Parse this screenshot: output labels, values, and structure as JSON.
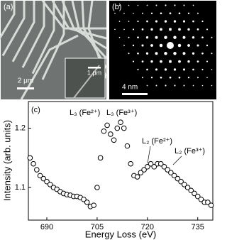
{
  "panels": {
    "a": {
      "label": "(a)",
      "scale_bar": "2 μm",
      "inset_scale_bar": "1 μm"
    },
    "b": {
      "label": "(b)",
      "scale_bar": "4 nm"
    }
  },
  "chart_data": {
    "type": "scatter",
    "label": "(c)",
    "x_label": "Energy Loss (eV)",
    "y_label": "Intensity (arb. units)",
    "annotations": [
      "L₃ (Fe²⁺)",
      "L₃ (Fe³⁺)",
      "L₂ (Fe²⁺)",
      "L₂ (Fe³⁺)"
    ],
    "x": [
      685,
      686,
      687,
      688,
      689,
      690,
      691,
      692,
      693,
      694,
      695,
      696,
      697,
      698,
      699,
      700,
      701,
      702,
      703,
      704,
      705,
      706,
      707,
      708,
      709,
      710,
      711,
      712,
      713,
      714,
      715,
      716,
      717,
      718,
      719,
      720,
      721,
      722,
      723,
      724,
      725,
      726,
      727,
      728,
      729,
      730,
      731,
      732,
      733,
      734,
      735,
      736,
      737,
      738,
      739
    ],
    "values": [
      1.15,
      1.14,
      1.13,
      1.12,
      1.115,
      1.11,
      1.105,
      1.1,
      1.097,
      1.093,
      1.09,
      1.088,
      1.087,
      1.085,
      1.085,
      1.083,
      1.08,
      1.075,
      1.068,
      1.07,
      1.1,
      1.15,
      1.195,
      1.205,
      1.19,
      1.18,
      1.2,
      1.21,
      1.2,
      1.17,
      1.14,
      1.12,
      1.118,
      1.125,
      1.13,
      1.135,
      1.14,
      1.135,
      1.14,
      1.14,
      1.135,
      1.13,
      1.125,
      1.12,
      1.115,
      1.11,
      1.105,
      1.1,
      1.095,
      1.09,
      1.085,
      1.08,
      1.075,
      1.075,
      1.07
    ],
    "xlim": [
      684.5,
      739.5
    ],
    "ylim": [
      1.045,
      1.245
    ],
    "xticks": [
      690,
      705,
      720,
      735
    ],
    "yticks": [
      1.1,
      1.2
    ],
    "marker_color": "#000000"
  }
}
